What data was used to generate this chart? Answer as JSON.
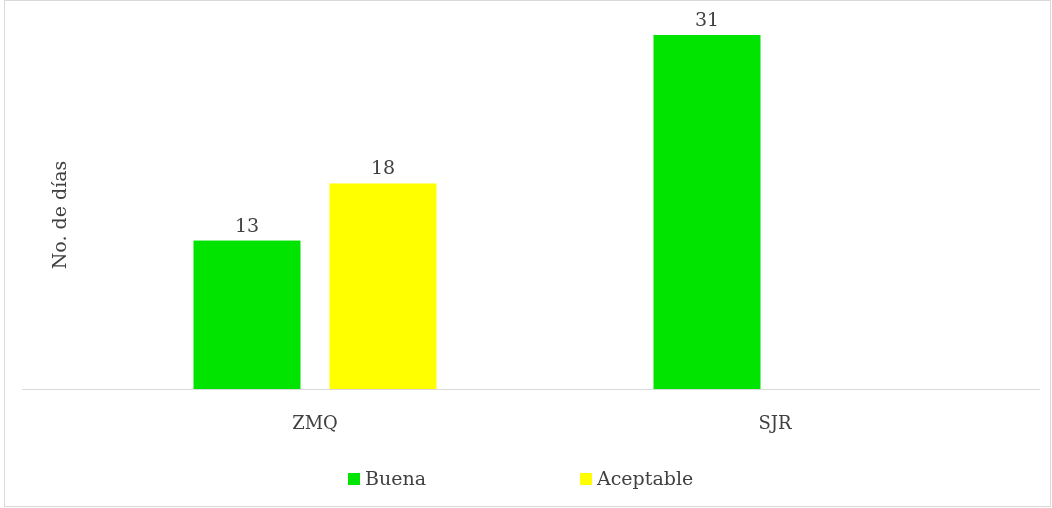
{
  "chart_data": {
    "type": "bar",
    "ylabel": "No. de días",
    "categories": [
      "ZMQ",
      "SJR"
    ],
    "series": [
      {
        "name": "Buena",
        "color": "#00e400",
        "values": [
          13,
          31
        ]
      },
      {
        "name": "Aceptable",
        "color": "#ffff00",
        "values": [
          18,
          null
        ]
      }
    ],
    "data_labels": true,
    "legend": "bottom",
    "tick_labels": "x"
  }
}
